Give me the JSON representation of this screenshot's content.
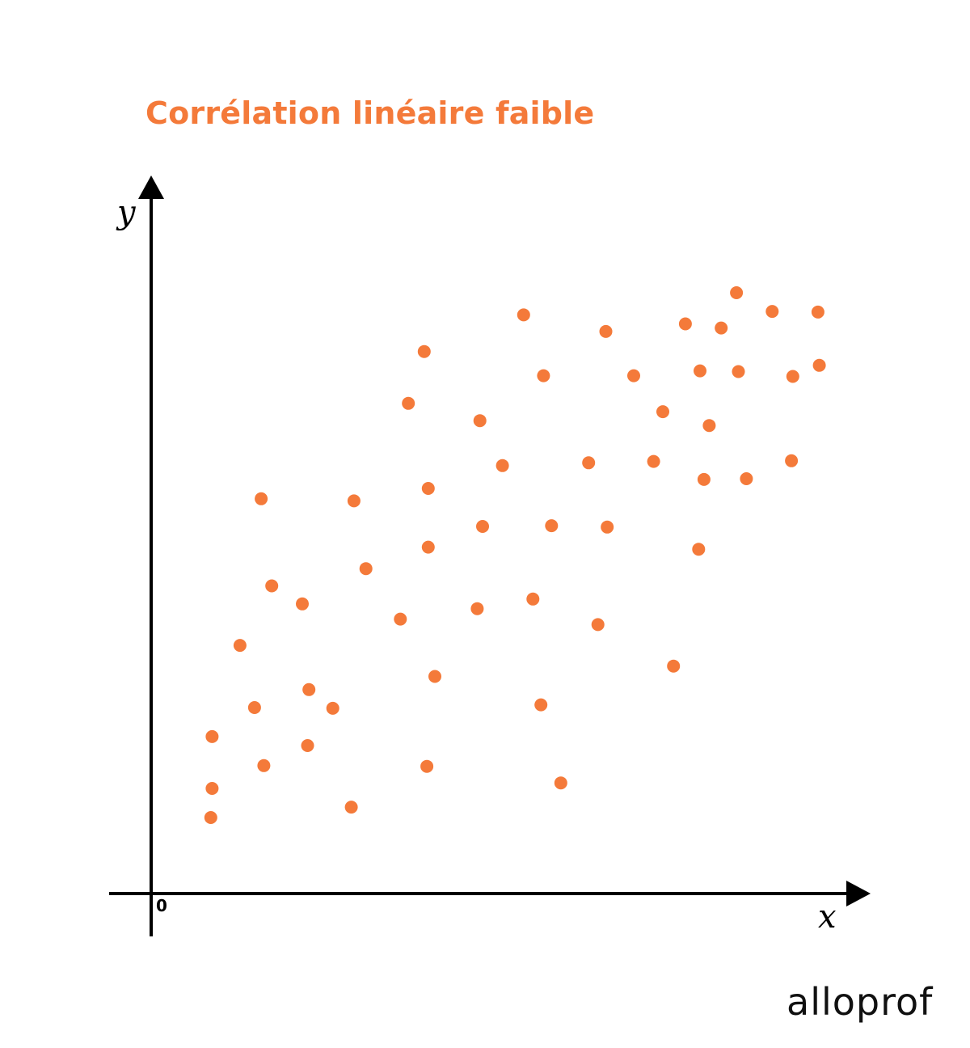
{
  "chart_data": {
    "type": "scatter",
    "title": "Corrélation linéaire faible",
    "xlabel": "x",
    "ylabel": "y",
    "origin_label": "0",
    "xlim": [
      0,
      100
    ],
    "ylim": [
      0,
      100
    ],
    "grid": false,
    "point_color": "#f47a3a",
    "series": [
      {
        "points": [
          [
            9,
            11
          ],
          [
            9.2,
            15.2
          ],
          [
            9.2,
            22.7
          ],
          [
            13.4,
            35.9
          ],
          [
            15.6,
            26.9
          ],
          [
            16.6,
            57.1
          ],
          [
            17,
            18.5
          ],
          [
            18.2,
            44.5
          ],
          [
            22.8,
            41.9
          ],
          [
            23.6,
            21.4
          ],
          [
            23.8,
            29.5
          ],
          [
            27.4,
            26.8
          ],
          [
            30.2,
            12.5
          ],
          [
            30.6,
            56.8
          ],
          [
            32.4,
            47.0
          ],
          [
            37.6,
            39.7
          ],
          [
            38.8,
            70.9
          ],
          [
            41.2,
            78.4
          ],
          [
            41.6,
            18.4
          ],
          [
            41.8,
            58.6
          ],
          [
            41.8,
            50.1
          ],
          [
            42.8,
            31.4
          ],
          [
            49.2,
            41.2
          ],
          [
            49.6,
            68.4
          ],
          [
            50.0,
            53.1
          ],
          [
            53.0,
            61.9
          ],
          [
            56.2,
            83.7
          ],
          [
            57.6,
            42.6
          ],
          [
            58.8,
            27.3
          ],
          [
            59.2,
            74.9
          ],
          [
            60.4,
            53.2
          ],
          [
            61.8,
            16.0
          ],
          [
            66.0,
            62.3
          ],
          [
            67.4,
            38.9
          ],
          [
            68.6,
            81.3
          ],
          [
            68.8,
            53.0
          ],
          [
            72.8,
            74.9
          ],
          [
            75.8,
            62.5
          ],
          [
            77.2,
            69.7
          ],
          [
            78.8,
            32.9
          ],
          [
            80.6,
            82.4
          ],
          [
            82.6,
            49.8
          ],
          [
            82.8,
            75.6
          ],
          [
            83.4,
            59.9
          ],
          [
            84.2,
            67.7
          ],
          [
            86.0,
            81.8
          ],
          [
            88.3,
            86.9
          ],
          [
            88.6,
            75.5
          ],
          [
            89.8,
            60.0
          ],
          [
            93.7,
            84.2
          ],
          [
            96.6,
            62.6
          ],
          [
            96.8,
            74.8
          ],
          [
            100.6,
            84.1
          ],
          [
            100.8,
            76.4
          ]
        ]
      }
    ]
  },
  "brand": {
    "name": "alloprof"
  }
}
